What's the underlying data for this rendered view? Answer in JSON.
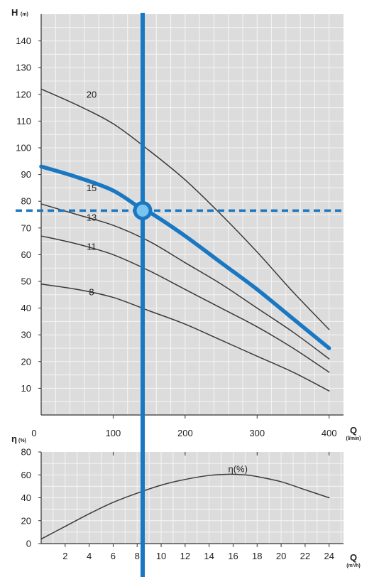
{
  "colors": {
    "plot_bg": "#dcdcdc",
    "grid": "#f5f5f5",
    "axis": "#333333",
    "curve": "#3a3a3a",
    "highlight": "#1a78c2",
    "marker_fill": "#7cc4f0"
  },
  "chart_data": [
    {
      "type": "line",
      "title": "",
      "ylabel": {
        "main": "H",
        "unit": "(m)"
      },
      "xlabel": {
        "main": "Q",
        "unit": "(l/min)"
      },
      "xlim": [
        0,
        420
      ],
      "ylim": [
        0,
        150
      ],
      "xticks": [
        100,
        200,
        300,
        400
      ],
      "yticks": [
        10,
        20,
        30,
        40,
        50,
        60,
        70,
        80,
        90,
        100,
        110,
        120,
        130,
        140
      ],
      "grid": true,
      "series": [
        {
          "name": "20",
          "label_at": [
            70,
            120
          ],
          "x": [
            0,
            50,
            100,
            150,
            200,
            250,
            300,
            350,
            400
          ],
          "y": [
            122,
            116,
            109,
            99,
            88,
            75,
            61,
            46,
            32
          ]
        },
        {
          "name": "15",
          "label_at": [
            70,
            85
          ],
          "highlight": true,
          "x": [
            0,
            50,
            100,
            140,
            150,
            200,
            250,
            300,
            350,
            400
          ],
          "y": [
            93,
            89,
            84,
            77,
            76,
            67,
            57,
            47,
            36,
            25
          ]
        },
        {
          "name": "13",
          "label_at": [
            70,
            74
          ],
          "x": [
            0,
            50,
            100,
            150,
            200,
            250,
            300,
            350,
            400
          ],
          "y": [
            79,
            75,
            71,
            65,
            57,
            49,
            40,
            31,
            21
          ]
        },
        {
          "name": "11",
          "label_at": [
            70,
            63
          ],
          "x": [
            0,
            50,
            100,
            150,
            200,
            250,
            300,
            350,
            400
          ],
          "y": [
            67,
            64,
            60,
            54,
            47,
            40,
            33,
            25,
            16
          ]
        },
        {
          "name": "8",
          "label_at": [
            70,
            46
          ],
          "x": [
            0,
            50,
            100,
            150,
            200,
            250,
            300,
            350,
            400
          ],
          "y": [
            49,
            47,
            44,
            39,
            34,
            28,
            22,
            16,
            9
          ]
        }
      ],
      "operating_point": {
        "x": 141,
        "y": 76.5
      }
    },
    {
      "type": "line",
      "title": "",
      "ylabel": {
        "main": "η",
        "unit": "(%)"
      },
      "xlabel": {
        "main": "Q",
        "unit": "(m³/h)"
      },
      "xlim": [
        0,
        25.2
      ],
      "ylim": [
        0,
        80
      ],
      "xticks": [
        2,
        4,
        6,
        8,
        10,
        12,
        14,
        16,
        18,
        20,
        22,
        24
      ],
      "yticks": [
        0,
        20,
        40,
        60,
        80
      ],
      "grid": true,
      "series": [
        {
          "name": "η(%)",
          "label_at": [
            16.4,
            65
          ],
          "x": [
            0,
            2,
            4,
            6,
            8,
            10,
            12,
            14,
            15.5,
            17,
            18,
            20,
            22,
            24
          ],
          "y": [
            4,
            15,
            26,
            36,
            44,
            51,
            56,
            59.5,
            60.5,
            60,
            58.5,
            54,
            47,
            40
          ]
        }
      ]
    }
  ]
}
